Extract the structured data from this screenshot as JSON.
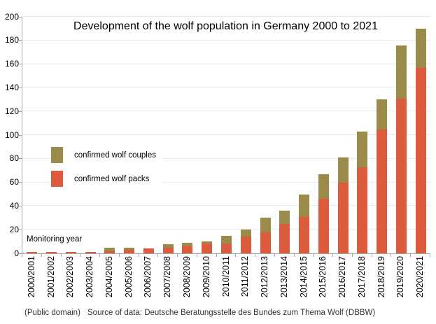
{
  "title": "Development of the wolf population in Germany 2000 to 2021",
  "legend": [
    {
      "label": "confirmed wolf couples",
      "series": "couples",
      "color": "#9A8B4A"
    },
    {
      "label": "confirmed wolf packs",
      "series": "packs",
      "color": "#DC5B3C"
    }
  ],
  "inner_label": "Monitoring year",
  "footer": {
    "license": "(Public domain)",
    "source": "Source of data: Deutsche Beratungsstelle des Bundes zum Thema Wolf (DBBW)"
  },
  "colors": {
    "packs": "#DC5B3C",
    "couples": "#9A8B4A",
    "axis": "#A6A6A6",
    "grid": "#EAEAEA"
  },
  "chart_data": {
    "type": "bar",
    "stacked": true,
    "title": "Development of the wolf population in Germany 2000 to 2021",
    "xlabel": "Monitoring year",
    "ylabel": "",
    "ylim": [
      0,
      200
    ],
    "y_tick_step": 20,
    "y_ticks": [
      0,
      20,
      40,
      60,
      80,
      100,
      120,
      140,
      160,
      180,
      200
    ],
    "grid": true,
    "legend_position": "inside-left",
    "categories": [
      "2000/2001",
      "2001/2002",
      "2002/2003",
      "2003/2004",
      "2004/2005",
      "2005/2006",
      "2006/2007",
      "2007/2008",
      "2008/2009",
      "2009/2010",
      "2010/2011",
      "2011/2012",
      "2012/2013",
      "2013/2014",
      "2014/2015",
      "2015/2016",
      "2016/2017",
      "2017/2018",
      "2018/2019",
      "2019/2020",
      "2020/2021"
    ],
    "series": [
      {
        "name": "confirmed wolf packs",
        "color": "#DC5B3C",
        "values": [
          1,
          1,
          1,
          1,
          2,
          3,
          4,
          5,
          6,
          8,
          8,
          14,
          18,
          25,
          31,
          46,
          60,
          73,
          105,
          131,
          157
        ]
      },
      {
        "name": "confirmed wolf couples",
        "color": "#9A8B4A",
        "values": [
          0,
          0,
          0,
          0,
          3,
          2,
          0,
          3,
          3,
          2,
          7,
          6,
          12,
          11,
          19,
          21,
          21,
          30,
          25,
          45,
          33
        ]
      }
    ]
  }
}
